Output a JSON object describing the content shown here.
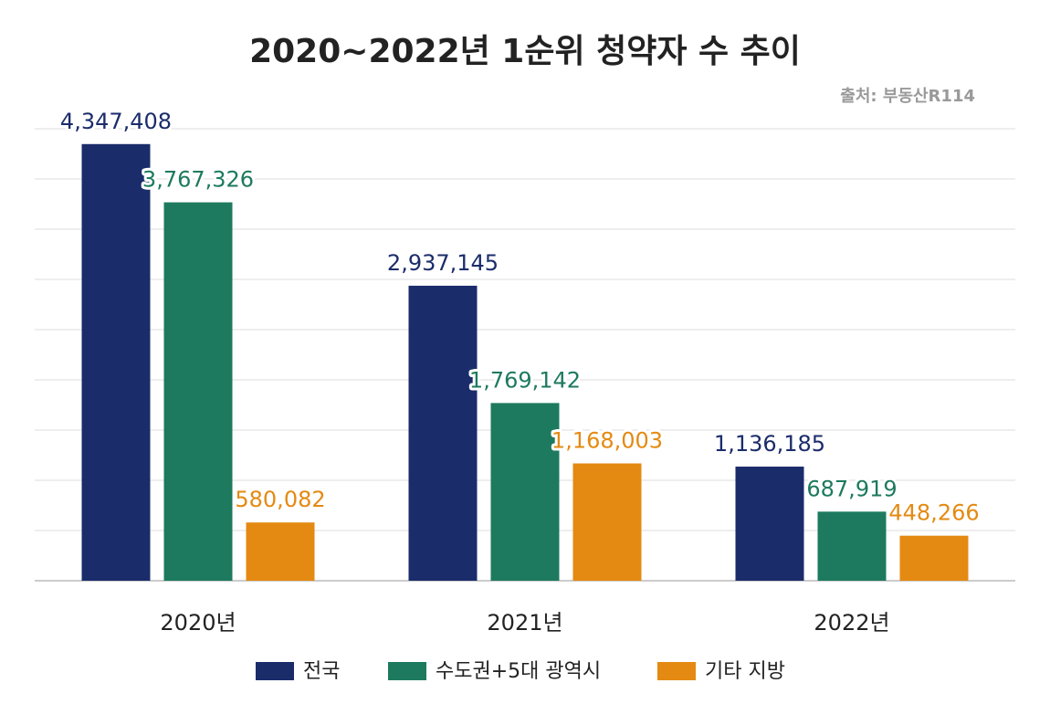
{
  "chart_data": {
    "type": "bar",
    "title": "2020~2022년 1순위 청약자 수 추이",
    "source": "출처: 부동산R114",
    "categories": [
      "2020년",
      "2021년",
      "2022년"
    ],
    "series": [
      {
        "name": "전국",
        "color": "#1b2c6b",
        "values": [
          4347408,
          2937145,
          1136185
        ],
        "value_labels": [
          "4,347,408",
          "2,937,145",
          "1,136,185"
        ]
      },
      {
        "name": "수도권+5대 광역시",
        "color": "#1d7a5e",
        "values": [
          3767326,
          1769142,
          687919
        ],
        "value_labels": [
          "3,767,326",
          "1,769,142",
          "687,919"
        ]
      },
      {
        "name": "기타 지방",
        "color": "#e48a12",
        "values": [
          580082,
          1168003,
          448266
        ],
        "value_labels": [
          "580,082",
          "1,168,003",
          "448,266"
        ]
      }
    ],
    "ylim": [
      0,
      4500000
    ],
    "yticks": [
      0,
      500000,
      1000000,
      1500000,
      2000000,
      2500000,
      3000000,
      3500000,
      4000000,
      4500000
    ],
    "grid": true
  }
}
